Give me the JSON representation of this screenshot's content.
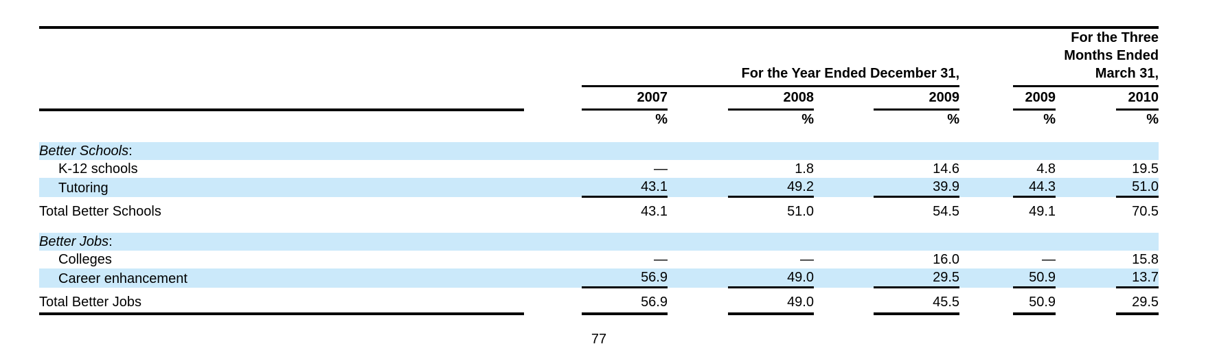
{
  "document": {
    "page_number": "77"
  },
  "colors": {
    "highlight": "#cbe9fa",
    "rule": "#000000",
    "text": "#000000"
  },
  "table": {
    "group_headers": [
      {
        "title": "For the Year Ended December 31,",
        "colspan_columns": 3
      },
      {
        "title_lines": [
          "For the Three",
          "Months Ended",
          "March 31,"
        ],
        "colspan_columns": 2
      }
    ],
    "year_columns": [
      "2007",
      "2008",
      "2009",
      "2009",
      "2010"
    ],
    "unit_labels": [
      "%",
      "%",
      "%",
      "%",
      "%"
    ],
    "rows": [
      {
        "kind": "spacer"
      },
      {
        "kind": "section",
        "label": "Better Schools",
        "label_suffix": ":",
        "highlight": true
      },
      {
        "kind": "item",
        "indent": true,
        "label": "K-12 schools",
        "highlight": false,
        "values": [
          "—",
          "1.8",
          "14.6",
          "4.8",
          "19.5"
        ]
      },
      {
        "kind": "item",
        "indent": true,
        "label": "Tutoring",
        "highlight": true,
        "value_underline": true,
        "values": [
          "43.1",
          "49.2",
          "39.9",
          "44.3",
          "51.0"
        ]
      },
      {
        "kind": "total",
        "label": "Total Better Schools",
        "highlight": false,
        "values": [
          "43.1",
          "51.0",
          "54.5",
          "49.1",
          "70.5"
        ]
      },
      {
        "kind": "spacer"
      },
      {
        "kind": "section",
        "label": "Better Jobs",
        "label_suffix": ":",
        "highlight": true
      },
      {
        "kind": "item",
        "indent": true,
        "label": "Colleges",
        "highlight": false,
        "values": [
          "—",
          "—",
          "16.0",
          "—",
          "15.8"
        ]
      },
      {
        "kind": "item",
        "indent": true,
        "label": "Career enhancement",
        "highlight": true,
        "value_underline": true,
        "values": [
          "56.9",
          "49.0",
          "29.5",
          "50.9",
          "13.7"
        ]
      },
      {
        "kind": "total",
        "label": "Total Better Jobs",
        "highlight": false,
        "bottom_rule": true,
        "values": [
          "56.9",
          "49.0",
          "45.5",
          "50.9",
          "29.5"
        ]
      }
    ]
  }
}
